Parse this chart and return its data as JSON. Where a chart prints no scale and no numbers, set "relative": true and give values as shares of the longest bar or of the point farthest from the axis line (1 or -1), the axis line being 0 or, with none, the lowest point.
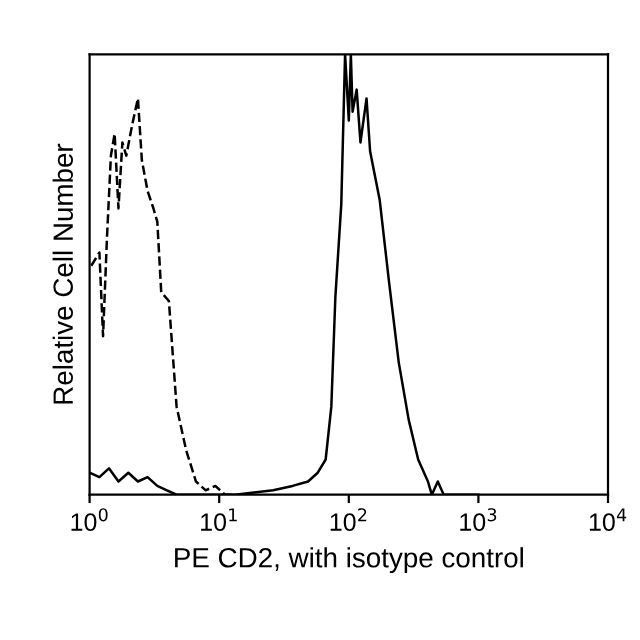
{
  "chart_data": {
    "type": "line",
    "relative": true,
    "log": "x",
    "xlabel": "PE CD2, with isotype control",
    "ylabel": "Relative Cell Number",
    "xlim": [
      1,
      10000
    ],
    "xticks": [
      {
        "value": 1,
        "label": "10$^{0}$"
      },
      {
        "value": 10,
        "label": "10$^{1}$"
      },
      {
        "value": 100,
        "label": "10$^{2}$"
      },
      {
        "value": 1000,
        "label": "10$^{3}$"
      },
      {
        "value": 10000,
        "label": "10$^{4}$"
      }
    ],
    "series": [
      {
        "color": "#000000",
        "line_style": "dashed",
        "x": [
          1.03,
          1.19,
          1.27,
          1.36,
          1.46,
          1.56,
          1.67,
          1.79,
          1.92,
          2.13,
          2.36,
          2.53,
          2.8,
          3.11,
          3.33,
          3.57,
          4.09,
          4.69,
          5.57,
          6.62,
          7.87,
          9.33,
          11.1,
          13.2
        ],
        "values": [
          0.52,
          0.55,
          0.36,
          0.58,
          0.77,
          0.82,
          0.65,
          0.8,
          0.77,
          0.84,
          0.9,
          0.76,
          0.69,
          0.65,
          0.62,
          0.46,
          0.44,
          0.2,
          0.1,
          0.03,
          0.01,
          0.02,
          0.0,
          0.0
        ]
      },
      {
        "color": "#000000",
        "line_style": "solid",
        "x": [
          1.0,
          1.19,
          1.41,
          1.67,
          1.99,
          2.36,
          2.8,
          3.33,
          3.95,
          4.69,
          13.2,
          26.1,
          36.8,
          48.5,
          57.6,
          66.3,
          73.3,
          78.8,
          87.5,
          93.6,
          100,
          103.7,
          107,
          115,
          123,
          137,
          146,
          173,
          205,
          243,
          290,
          343,
          408,
          437,
          486,
          540,
          1000
        ],
        "values": [
          0.05,
          0.04,
          0.06,
          0.03,
          0.05,
          0.03,
          0.04,
          0.02,
          0.01,
          0.0,
          0.0,
          0.01,
          0.02,
          0.03,
          0.05,
          0.08,
          0.2,
          0.45,
          0.66,
          1.0,
          0.85,
          1.0,
          0.87,
          0.92,
          0.8,
          0.9,
          0.78,
          0.67,
          0.48,
          0.3,
          0.17,
          0.08,
          0.03,
          0.0,
          0.03,
          0.0,
          0.0
        ]
      }
    ]
  }
}
